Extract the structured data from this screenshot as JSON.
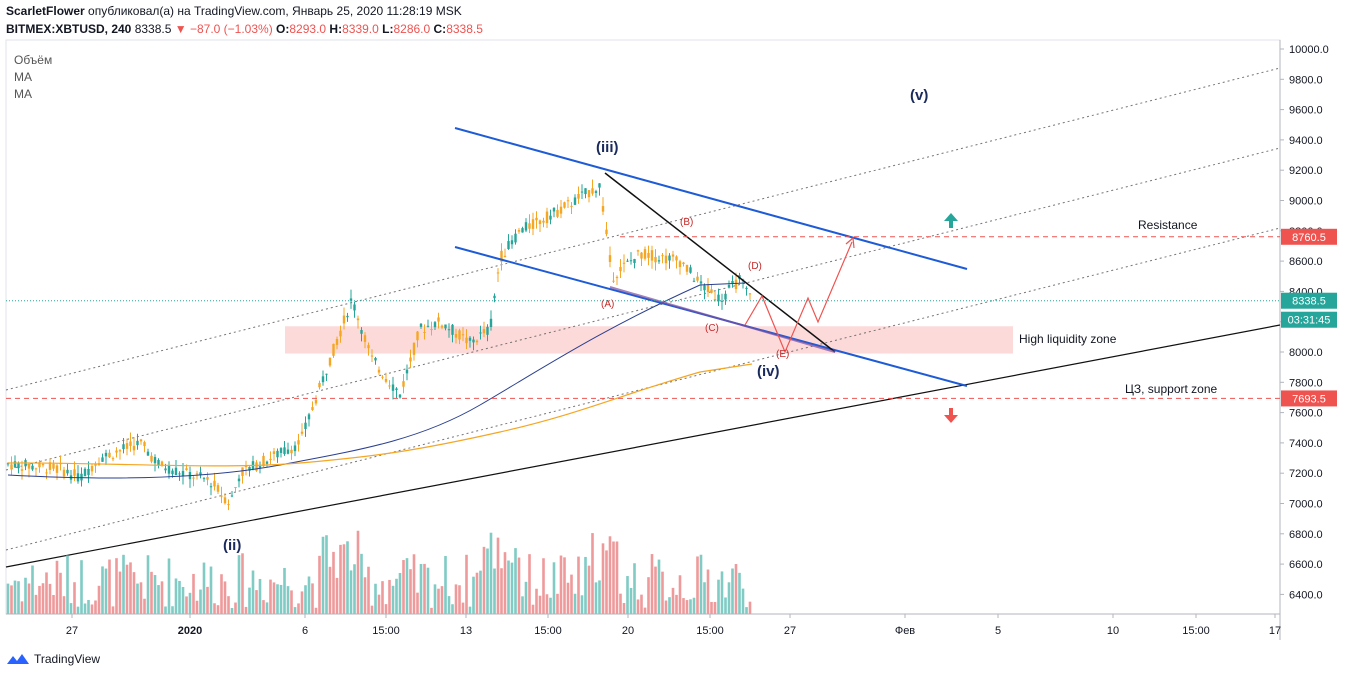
{
  "header": {
    "author": "ScarletFlower",
    "published_text": "опубликовал(а) на TradingView.com, Январь 25, 2020 11:28:19 MSK",
    "symbol": "BITMEX:XBTUSD, 240",
    "last": "8338.5",
    "change": "▼ −87.0 (−1.03%)",
    "o_label": "O:",
    "o_value": "8293.0",
    "h_label": "H:",
    "h_value": "8339.0",
    "l_label": "L:",
    "l_value": "8286.0",
    "c_label": "C:",
    "c_value": "8338.5"
  },
  "legend": {
    "volume": "Объём",
    "ma1": "MA",
    "ma2": "MA"
  },
  "footer": {
    "brand": "TradingView"
  },
  "chart_data": {
    "type": "candlestick",
    "y_axis": {
      "ticks": [
        "10000.0",
        "9800.0",
        "9600.0",
        "9400.0",
        "9200.0",
        "9000.0",
        "8800.0",
        "8600.0",
        "8400.0",
        "8200.0",
        "8000.0",
        "7800.0",
        "7600.0",
        "7400.0",
        "7200.0",
        "7000.0",
        "6800.0",
        "6600.0",
        "6400.0"
      ],
      "min": 6200,
      "max": 10100
    },
    "x_axis": {
      "ticks": [
        "27",
        "2020",
        "6",
        "15:00",
        "13",
        "15:00",
        "20",
        "15:00",
        "27",
        "Фев",
        "5",
        "10",
        "15:00",
        "17"
      ]
    },
    "price_labels": [
      {
        "text": "8760.5",
        "value": 8760.5,
        "color": "#ef5350"
      },
      {
        "text": "8338.5",
        "value": 8338.5,
        "color": "#26a69a"
      },
      {
        "text": "03:31:45",
        "value": 8200,
        "color": "#26a69a"
      },
      {
        "text": "7693.5",
        "value": 7693.5,
        "color": "#ef5350"
      }
    ],
    "wave_labels": [
      {
        "text": "(iii)",
        "color": "#1a2a5c"
      },
      {
        "text": "(ii)",
        "color": "#1a2a5c"
      },
      {
        "text": "(iv)",
        "color": "#1a2a5c"
      },
      {
        "text": "(v)",
        "color": "#1a2a5c"
      },
      {
        "text": "(A)",
        "color": "#c62828"
      },
      {
        "text": "(B)",
        "color": "#c62828"
      },
      {
        "text": "(C)",
        "color": "#c62828"
      },
      {
        "text": "(D)",
        "color": "#c62828"
      },
      {
        "text": "(E)",
        "color": "#c62828"
      }
    ],
    "annotations": [
      {
        "text": "Resistance"
      },
      {
        "text": "High liquidity zone"
      },
      {
        "text": "ЦЗ, support zone"
      }
    ],
    "levels": {
      "resistance": 8760.5,
      "support": 7693.5,
      "last": 8338.5
    },
    "colors": {
      "up": "#26a69a",
      "down": "#ef5350",
      "candle_up": "#26a69a",
      "candle_down": "#f5a623",
      "ma_fast": "#2a3f8f",
      "ma_slow": "#f5a623",
      "channel": "#1e5bd6",
      "zone": "#fbd4d4"
    }
  }
}
